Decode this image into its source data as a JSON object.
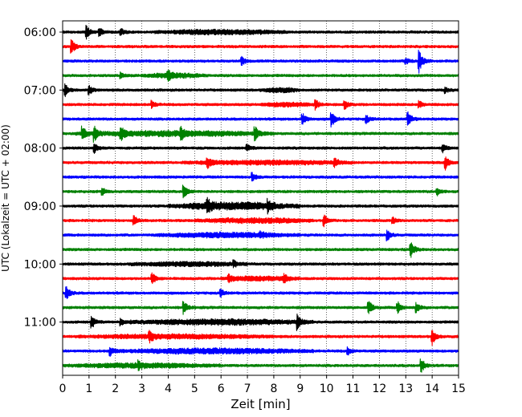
{
  "chart_data": {
    "type": "line",
    "title": "",
    "xlabel": "Zeit  [min]",
    "ylabel": "UTC (Lokalzeit = UTC + 02:00)",
    "xlim": [
      0,
      15
    ],
    "x_ticks": [
      "0",
      "1",
      "2",
      "3",
      "4",
      "5",
      "6",
      "7",
      "8",
      "9",
      "10",
      "11",
      "12",
      "13",
      "14",
      "15"
    ],
    "y_ticks": [
      "06:00",
      "07:00",
      "08:00",
      "09:00",
      "10:00",
      "11:00"
    ],
    "trace_count": 24,
    "trace_interval_min": 15,
    "grid": "vertical dotted",
    "colors": [
      "#000000",
      "#ff0000",
      "#0000ff",
      "#008000"
    ],
    "events": [
      {
        "row": 0,
        "x": 0.9,
        "amp": 1.0
      },
      {
        "row": 0,
        "x": 1.4,
        "amp": 0.6
      },
      {
        "row": 0,
        "x": 2.2,
        "amp": 0.6
      },
      {
        "row": 1,
        "x": 0.35,
        "amp": 1.0
      },
      {
        "row": 2,
        "x": 6.8,
        "amp": 0.6
      },
      {
        "row": 2,
        "x": 13.5,
        "amp": 1.8
      },
      {
        "row": 2,
        "x": 13.0,
        "amp": 0.5
      },
      {
        "row": 3,
        "x": 4.0,
        "amp": 0.7
      },
      {
        "row": 3,
        "x": 2.2,
        "amp": 0.5
      },
      {
        "row": 4,
        "x": 0.1,
        "amp": 0.9
      },
      {
        "row": 4,
        "x": 1.0,
        "amp": 0.7
      },
      {
        "row": 4,
        "x": 14.5,
        "amp": 0.4
      },
      {
        "row": 5,
        "x": 9.6,
        "amp": 0.7
      },
      {
        "row": 5,
        "x": 10.7,
        "amp": 0.6
      },
      {
        "row": 5,
        "x": 13.5,
        "amp": 0.6
      },
      {
        "row": 5,
        "x": 3.4,
        "amp": 0.5
      },
      {
        "row": 6,
        "x": 9.1,
        "amp": 0.8
      },
      {
        "row": 6,
        "x": 10.2,
        "amp": 1.1
      },
      {
        "row": 6,
        "x": 13.1,
        "amp": 1.0
      },
      {
        "row": 6,
        "x": 11.5,
        "amp": 0.6
      },
      {
        "row": 7,
        "x": 0.75,
        "amp": 1.0
      },
      {
        "row": 7,
        "x": 1.2,
        "amp": 1.1
      },
      {
        "row": 7,
        "x": 2.2,
        "amp": 1.0
      },
      {
        "row": 7,
        "x": 4.5,
        "amp": 0.8
      },
      {
        "row": 7,
        "x": 7.3,
        "amp": 0.9
      },
      {
        "row": 8,
        "x": 1.2,
        "amp": 0.8
      },
      {
        "row": 8,
        "x": 14.4,
        "amp": 0.6
      },
      {
        "row": 8,
        "x": 7.0,
        "amp": 0.5
      },
      {
        "row": 9,
        "x": 14.5,
        "amp": 1.1
      },
      {
        "row": 9,
        "x": 5.5,
        "amp": 0.7
      },
      {
        "row": 9,
        "x": 10.3,
        "amp": 0.7
      },
      {
        "row": 10,
        "x": 7.2,
        "amp": 0.6
      },
      {
        "row": 11,
        "x": 4.6,
        "amp": 1.0
      },
      {
        "row": 11,
        "x": 1.5,
        "amp": 0.6
      },
      {
        "row": 11,
        "x": 14.2,
        "amp": 0.5
      },
      {
        "row": 12,
        "x": 5.5,
        "amp": 0.8
      },
      {
        "row": 12,
        "x": 7.8,
        "amp": 0.7
      },
      {
        "row": 13,
        "x": 9.9,
        "amp": 0.9
      },
      {
        "row": 13,
        "x": 2.7,
        "amp": 0.7
      },
      {
        "row": 13,
        "x": 12.5,
        "amp": 0.5
      },
      {
        "row": 14,
        "x": 12.3,
        "amp": 0.9
      },
      {
        "row": 14,
        "x": 7.5,
        "amp": 0.4
      },
      {
        "row": 15,
        "x": 13.2,
        "amp": 1.2
      },
      {
        "row": 16,
        "x": 6.5,
        "amp": 0.4
      },
      {
        "row": 17,
        "x": 3.4,
        "amp": 0.8
      },
      {
        "row": 17,
        "x": 8.4,
        "amp": 0.5
      },
      {
        "row": 17,
        "x": 6.3,
        "amp": 0.5
      },
      {
        "row": 18,
        "x": 0.15,
        "amp": 1.0
      },
      {
        "row": 18,
        "x": 6.0,
        "amp": 0.5
      },
      {
        "row": 19,
        "x": 4.6,
        "amp": 0.9
      },
      {
        "row": 19,
        "x": 11.6,
        "amp": 1.1
      },
      {
        "row": 19,
        "x": 12.7,
        "amp": 0.8
      },
      {
        "row": 19,
        "x": 13.4,
        "amp": 0.7
      },
      {
        "row": 20,
        "x": 1.1,
        "amp": 1.0
      },
      {
        "row": 20,
        "x": 8.9,
        "amp": 1.1
      },
      {
        "row": 20,
        "x": 2.2,
        "amp": 0.6
      },
      {
        "row": 21,
        "x": 14.0,
        "amp": 1.2
      },
      {
        "row": 21,
        "x": 3.3,
        "amp": 0.7
      },
      {
        "row": 22,
        "x": 1.8,
        "amp": 0.7
      },
      {
        "row": 22,
        "x": 10.8,
        "amp": 0.6
      },
      {
        "row": 23,
        "x": 13.6,
        "amp": 1.0
      },
      {
        "row": 23,
        "x": 2.9,
        "amp": 0.5
      }
    ],
    "busy_segments": [
      {
        "row": 0,
        "from": 3.5,
        "to": 8.5,
        "level": 0.45
      },
      {
        "row": 3,
        "from": 3.0,
        "to": 5.5,
        "level": 0.4
      },
      {
        "row": 4,
        "from": 7.5,
        "to": 9.0,
        "level": 0.4
      },
      {
        "row": 5,
        "from": 7.5,
        "to": 9.5,
        "level": 0.4
      },
      {
        "row": 7,
        "from": 0.5,
        "to": 8.0,
        "level": 0.5
      },
      {
        "row": 9,
        "from": 4.5,
        "to": 11.0,
        "level": 0.4
      },
      {
        "row": 12,
        "from": 4.0,
        "to": 9.0,
        "level": 0.75
      },
      {
        "row": 13,
        "from": 5.0,
        "to": 9.5,
        "level": 0.45
      },
      {
        "row": 14,
        "from": 3.5,
        "to": 9.0,
        "level": 0.45
      },
      {
        "row": 16,
        "from": 2.5,
        "to": 7.0,
        "level": 0.4
      },
      {
        "row": 17,
        "from": 6.0,
        "to": 9.0,
        "level": 0.4
      },
      {
        "row": 20,
        "from": 2.5,
        "to": 9.5,
        "level": 0.55
      },
      {
        "row": 21,
        "from": 0.5,
        "to": 8.0,
        "level": 0.4
      },
      {
        "row": 22,
        "from": 2.0,
        "to": 9.5,
        "level": 0.5
      },
      {
        "row": 23,
        "from": 0.0,
        "to": 6.0,
        "level": 0.4
      }
    ]
  }
}
